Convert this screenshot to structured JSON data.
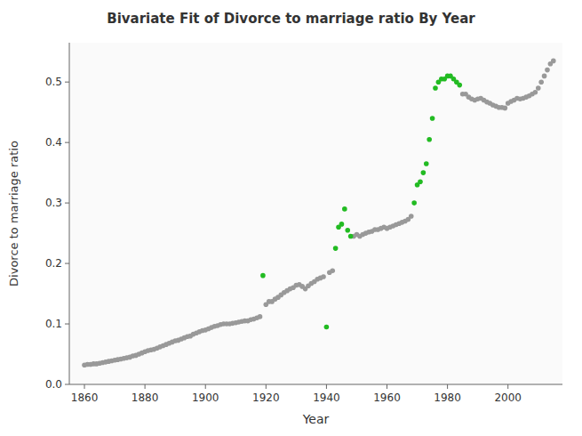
{
  "chart_data": {
    "type": "scatter",
    "title": "Bivariate Fit of Divorce to marriage ratio By Year",
    "xlabel": "Year",
    "ylabel": "Divorce to marriage ratio",
    "xlim": [
      1855,
      2018
    ],
    "ylim": [
      0,
      0.565
    ],
    "xticks": [
      1860,
      1880,
      1900,
      1920,
      1940,
      1960,
      1980,
      2000
    ],
    "yticks": [
      {
        "value": 0,
        "label": "0.0"
      },
      0.1,
      0.2,
      0.3,
      0.4,
      0.5
    ],
    "grid": false,
    "marker": "circle",
    "series": [
      {
        "color": "#999999",
        "x": [
          1860,
          1861,
          1862,
          1863,
          1864,
          1865,
          1866,
          1867,
          1868,
          1869,
          1870,
          1871,
          1872,
          1873,
          1874,
          1875,
          1876,
          1877,
          1878,
          1879,
          1880,
          1881,
          1882,
          1883,
          1884,
          1885,
          1886,
          1887,
          1888,
          1889,
          1890,
          1891,
          1892,
          1893,
          1894,
          1895,
          1896,
          1897,
          1898,
          1899,
          1900,
          1901,
          1902,
          1903,
          1904,
          1905,
          1906,
          1907,
          1908,
          1909,
          1910,
          1911,
          1912,
          1913,
          1914,
          1915,
          1916,
          1917,
          1918,
          1920,
          1921,
          1922,
          1923,
          1924,
          1925,
          1926,
          1927,
          1928,
          1929,
          1930,
          1931,
          1932,
          1933,
          1934,
          1935,
          1936,
          1937,
          1938,
          1939,
          1941,
          1942,
          1949,
          1950,
          1951,
          1952,
          1953,
          1954,
          1955,
          1956,
          1957,
          1958,
          1959,
          1960,
          1961,
          1962,
          1963,
          1964,
          1965,
          1966,
          1967,
          1968,
          1985,
          1986,
          1987,
          1988,
          1989,
          1990,
          1991,
          1992,
          1993,
          1994,
          1995,
          1996,
          1997,
          1998,
          1999,
          2000,
          2001,
          2002,
          2003,
          2004,
          2005,
          2006,
          2007,
          2008,
          2009,
          2010,
          2011,
          2012,
          2013,
          2014,
          2015
        ],
        "values": [
          0.032,
          0.033,
          0.033,
          0.034,
          0.034,
          0.035,
          0.036,
          0.037,
          0.038,
          0.039,
          0.04,
          0.041,
          0.042,
          0.043,
          0.044,
          0.045,
          0.047,
          0.048,
          0.05,
          0.052,
          0.054,
          0.056,
          0.057,
          0.058,
          0.06,
          0.062,
          0.064,
          0.066,
          0.068,
          0.07,
          0.072,
          0.073,
          0.075,
          0.077,
          0.079,
          0.08,
          0.083,
          0.085,
          0.087,
          0.089,
          0.09,
          0.092,
          0.094,
          0.096,
          0.097,
          0.099,
          0.1,
          0.1,
          0.1,
          0.101,
          0.102,
          0.103,
          0.104,
          0.105,
          0.105,
          0.107,
          0.108,
          0.11,
          0.112,
          0.132,
          0.137,
          0.137,
          0.141,
          0.144,
          0.148,
          0.152,
          0.155,
          0.158,
          0.16,
          0.164,
          0.165,
          0.162,
          0.158,
          0.163,
          0.167,
          0.17,
          0.174,
          0.176,
          0.178,
          0.185,
          0.188,
          0.245,
          0.248,
          0.245,
          0.248,
          0.25,
          0.252,
          0.253,
          0.256,
          0.256,
          0.258,
          0.26,
          0.258,
          0.26,
          0.262,
          0.264,
          0.266,
          0.268,
          0.27,
          0.273,
          0.278,
          0.48,
          0.48,
          0.475,
          0.472,
          0.47,
          0.472,
          0.473,
          0.47,
          0.467,
          0.465,
          0.462,
          0.46,
          0.458,
          0.458,
          0.457,
          0.465,
          0.468,
          0.47,
          0.473,
          0.472,
          0.473,
          0.475,
          0.477,
          0.48,
          0.483,
          0.49,
          0.5,
          0.51,
          0.52,
          0.53,
          0.535
        ]
      },
      {
        "color": "#22bb22",
        "x": [
          1919,
          1940,
          1943,
          1944,
          1945,
          1946,
          1947,
          1948,
          1969,
          1970,
          1971,
          1972,
          1973,
          1974,
          1975,
          1976,
          1977,
          1978,
          1979,
          1980,
          1981,
          1982,
          1983,
          1984
        ],
        "values": [
          0.18,
          0.095,
          0.225,
          0.26,
          0.265,
          0.29,
          0.255,
          0.245,
          0.3,
          0.33,
          0.335,
          0.35,
          0.365,
          0.405,
          0.44,
          0.49,
          0.5,
          0.505,
          0.505,
          0.51,
          0.51,
          0.505,
          0.5,
          0.495
        ]
      }
    ]
  }
}
